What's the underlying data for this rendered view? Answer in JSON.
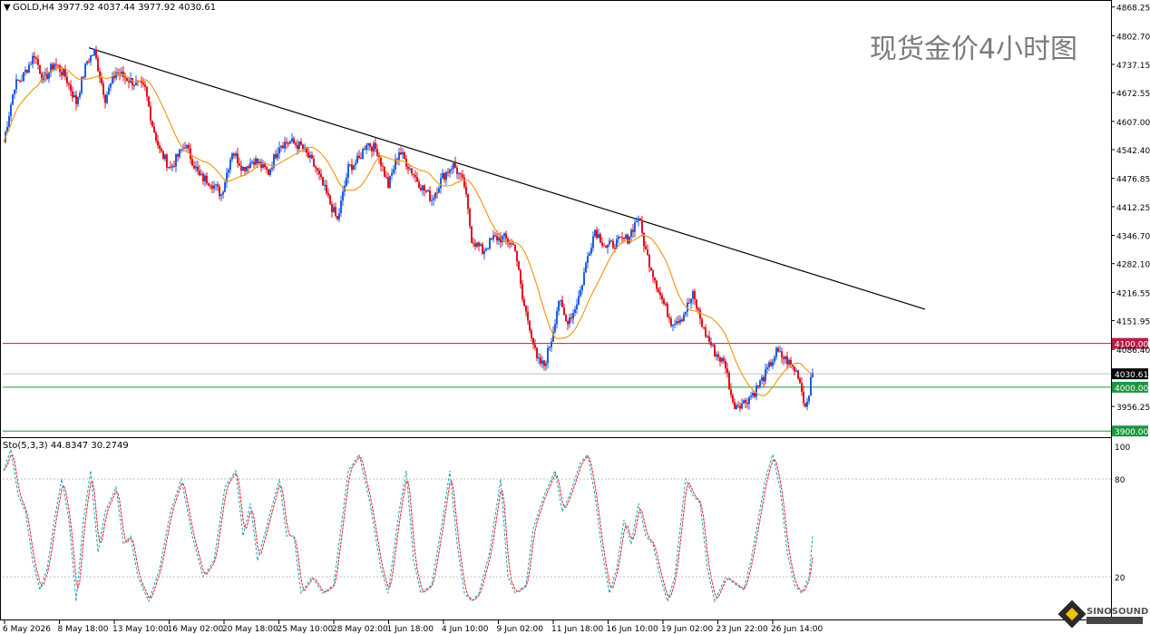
{
  "header": {
    "symbol_line": "GOLD,H4  3977.92 4037.44 3977.92 4030.61",
    "watermark": "现货金价4小时图"
  },
  "indicator": {
    "label": "Sto(5,3,3) 44.8347 30.2749",
    "levels": [
      100,
      80,
      20
    ],
    "main_color": "#1aa0b4",
    "signal_color": "#e0202a"
  },
  "logo": {
    "text": "SINOSOUND"
  },
  "colors": {
    "bull": "#1f5fe0",
    "bear": "#e01222",
    "ma": "#f39a1e",
    "trendline": "#000000",
    "line_red": "#b41e46",
    "line_green": "#1e9640",
    "grid": "#e6e6e6"
  },
  "chart_data": {
    "type": "candlestick",
    "symbol": "GOLD",
    "timeframe": "H4",
    "y_axis_ticks": [
      4868.25,
      4802.7,
      4737.15,
      4672.55,
      4607.0,
      4542.4,
      4476.85,
      4412.25,
      4346.7,
      4282.1,
      4216.55,
      4151.95,
      4086.4,
      3956.25
    ],
    "ylim": [
      3888,
      4880
    ],
    "x_axis_labels": [
      "6 May 2026",
      "8 May 18:00",
      "13 May 10:00",
      "16 May 02:00",
      "20 May 18:00",
      "25 May 10:00",
      "28 May 02:00",
      "1 Jun 18:00",
      "4 Jun 10:00",
      "9 Jun 02:00",
      "11 Jun 18:00",
      "16 Jun 10:00",
      "19 Jun 02:00",
      "23 Jun 22:00",
      "26 Jun 14:00"
    ],
    "horizontal_lines": [
      {
        "label": "4100.00",
        "value": 4100,
        "color": "#b41e46"
      },
      {
        "label": "4000.00",
        "value": 4000,
        "color": "#1e9640"
      },
      {
        "label": "3900.00",
        "value": 3900,
        "color": "#1e9640"
      }
    ],
    "current_price": {
      "label": "4030.61",
      "value": 4030.61
    },
    "trendline": {
      "from": {
        "bar": 47,
        "price": 4775
      },
      "to": {
        "bar": 508,
        "price": 4178
      }
    },
    "price_path": [
      [
        0,
        4560
      ],
      [
        6,
        4690
      ],
      [
        10,
        4705
      ],
      [
        17,
        4760
      ],
      [
        22,
        4700
      ],
      [
        28,
        4740
      ],
      [
        34,
        4710
      ],
      [
        40,
        4650
      ],
      [
        46,
        4745
      ],
      [
        50,
        4765
      ],
      [
        56,
        4660
      ],
      [
        62,
        4720
      ],
      [
        70,
        4700
      ],
      [
        78,
        4680
      ],
      [
        82,
        4600
      ],
      [
        86,
        4540
      ],
      [
        92,
        4500
      ],
      [
        100,
        4555
      ],
      [
        108,
        4480
      ],
      [
        114,
        4470
      ],
      [
        120,
        4440
      ],
      [
        126,
        4540
      ],
      [
        132,
        4500
      ],
      [
        138,
        4520
      ],
      [
        146,
        4490
      ],
      [
        152,
        4555
      ],
      [
        158,
        4560
      ],
      [
        164,
        4550
      ],
      [
        172,
        4500
      ],
      [
        178,
        4440
      ],
      [
        184,
        4380
      ],
      [
        190,
        4500
      ],
      [
        196,
        4520
      ],
      [
        200,
        4560
      ],
      [
        206,
        4540
      ],
      [
        212,
        4460
      ],
      [
        218,
        4540
      ],
      [
        224,
        4500
      ],
      [
        230,
        4460
      ],
      [
        236,
        4430
      ],
      [
        242,
        4480
      ],
      [
        248,
        4510
      ],
      [
        254,
        4460
      ],
      [
        258,
        4340
      ],
      [
        264,
        4310
      ],
      [
        270,
        4340
      ],
      [
        276,
        4340
      ],
      [
        282,
        4320
      ],
      [
        286,
        4200
      ],
      [
        290,
        4140
      ],
      [
        294,
        4060
      ],
      [
        298,
        4050
      ],
      [
        302,
        4110
      ],
      [
        306,
        4200
      ],
      [
        310,
        4150
      ],
      [
        314,
        4170
      ],
      [
        318,
        4220
      ],
      [
        322,
        4300
      ],
      [
        326,
        4360
      ],
      [
        332,
        4320
      ],
      [
        338,
        4330
      ],
      [
        344,
        4340
      ],
      [
        350,
        4390
      ],
      [
        354,
        4310
      ],
      [
        358,
        4260
      ],
      [
        362,
        4210
      ],
      [
        368,
        4150
      ],
      [
        374,
        4160
      ],
      [
        380,
        4210
      ],
      [
        386,
        4130
      ],
      [
        392,
        4080
      ],
      [
        398,
        4050
      ],
      [
        402,
        3960
      ],
      [
        408,
        3965
      ],
      [
        414,
        3990
      ],
      [
        420,
        4030
      ],
      [
        426,
        4080
      ],
      [
        432,
        4060
      ],
      [
        438,
        4030
      ],
      [
        442,
        3955
      ],
      [
        446,
        4030
      ]
    ],
    "stochastic": {
      "k_period": 5,
      "d_period": 3,
      "slowing": 3,
      "main": 44.8347,
      "signal": 30.2749,
      "main_path": [
        [
          0,
          85
        ],
        [
          4,
          98
        ],
        [
          8,
          70
        ],
        [
          12,
          60
        ],
        [
          16,
          30
        ],
        [
          20,
          12
        ],
        [
          24,
          25
        ],
        [
          28,
          55
        ],
        [
          32,
          80
        ],
        [
          36,
          55
        ],
        [
          40,
          5
        ],
        [
          44,
          55
        ],
        [
          48,
          85
        ],
        [
          52,
          35
        ],
        [
          56,
          60
        ],
        [
          62,
          75
        ],
        [
          66,
          40
        ],
        [
          70,
          45
        ],
        [
          74,
          20
        ],
        [
          80,
          5
        ],
        [
          86,
          25
        ],
        [
          92,
          60
        ],
        [
          98,
          80
        ],
        [
          104,
          45
        ],
        [
          110,
          20
        ],
        [
          116,
          30
        ],
        [
          122,
          75
        ],
        [
          128,
          85
        ],
        [
          132,
          45
        ],
        [
          136,
          65
        ],
        [
          140,
          30
        ],
        [
          146,
          55
        ],
        [
          152,
          80
        ],
        [
          156,
          45
        ],
        [
          160,
          45
        ],
        [
          164,
          10
        ],
        [
          170,
          20
        ],
        [
          176,
          10
        ],
        [
          182,
          15
        ],
        [
          186,
          50
        ],
        [
          190,
          85
        ],
        [
          196,
          95
        ],
        [
          202,
          65
        ],
        [
          208,
          25
        ],
        [
          212,
          10
        ],
        [
          218,
          60
        ],
        [
          222,
          85
        ],
        [
          226,
          30
        ],
        [
          230,
          10
        ],
        [
          236,
          15
        ],
        [
          242,
          55
        ],
        [
          246,
          85
        ],
        [
          250,
          40
        ],
        [
          254,
          10
        ],
        [
          258,
          5
        ],
        [
          262,
          10
        ],
        [
          268,
          35
        ],
        [
          274,
          80
        ],
        [
          278,
          20
        ],
        [
          282,
          10
        ],
        [
          288,
          15
        ],
        [
          292,
          50
        ],
        [
          298,
          70
        ],
        [
          304,
          85
        ],
        [
          308,
          60
        ],
        [
          312,
          70
        ],
        [
          318,
          90
        ],
        [
          322,
          95
        ],
        [
          326,
          70
        ],
        [
          330,
          35
        ],
        [
          334,
          10
        ],
        [
          338,
          25
        ],
        [
          342,
          55
        ],
        [
          346,
          40
        ],
        [
          350,
          65
        ],
        [
          354,
          45
        ],
        [
          358,
          40
        ],
        [
          362,
          20
        ],
        [
          366,
          5
        ],
        [
          370,
          20
        ],
        [
          376,
          80
        ],
        [
          380,
          70
        ],
        [
          384,
          65
        ],
        [
          388,
          25
        ],
        [
          392,
          5
        ],
        [
          398,
          20
        ],
        [
          404,
          15
        ],
        [
          408,
          12
        ],
        [
          412,
          30
        ],
        [
          416,
          55
        ],
        [
          420,
          80
        ],
        [
          424,
          95
        ],
        [
          428,
          75
        ],
        [
          432,
          35
        ],
        [
          436,
          15
        ],
        [
          440,
          10
        ],
        [
          444,
          20
        ],
        [
          446,
          44.83
        ]
      ]
    }
  }
}
